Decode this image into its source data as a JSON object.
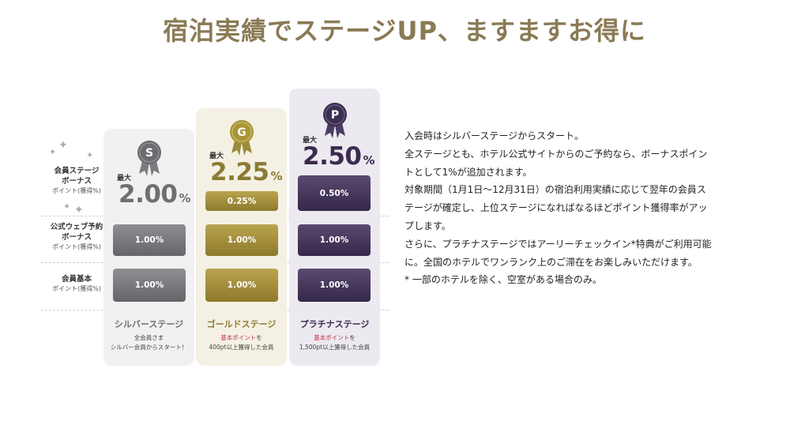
{
  "title": "宿泊実績でステージUP、ますますお得に",
  "row_labels": {
    "stage_bonus": {
      "title_line1": "会員ステージ",
      "title_line2": "ボーナス",
      "sub": "ポイント(獲得%)"
    },
    "web_bonus": {
      "title_line1": "公式ウェブ予約",
      "title_line2": "ボーナス",
      "sub": "ポイント(獲得%)"
    },
    "basic": {
      "title_line1": "会員基本",
      "sub": "ポイント(獲得%)"
    }
  },
  "sparkle_glyph": "✦",
  "max_label": "最大",
  "percent_sign": "%",
  "stages": {
    "silver": {
      "letter": "S",
      "max_rate": "2.00",
      "bonus": "",
      "web_bonus": "1.00%",
      "basic": "1.00%",
      "name": "シルバーステージ",
      "desc_line1": "全会員さま",
      "desc_line2": "シルバー会員からスタート！",
      "color": "#6f6f6f"
    },
    "gold": {
      "letter": "G",
      "max_rate": "2.25",
      "bonus": "0.25%",
      "web_bonus": "1.00%",
      "basic": "1.00%",
      "name": "ゴールドステージ",
      "desc_highlight": "基本ポイント",
      "desc_line1_rest": "を",
      "desc_line2": "400pt以上獲得した会員",
      "color": "#8c7b33"
    },
    "platinum": {
      "letter": "P",
      "max_rate": "2.50",
      "bonus": "0.50%",
      "web_bonus": "1.00%",
      "basic": "1.00%",
      "name": "プラチナステージ",
      "desc_highlight": "基本ポイント",
      "desc_line1_rest": "を",
      "desc_line2": "1,500pt以上獲得した会員",
      "color": "#3b2b4e"
    }
  },
  "description_lines": [
    "入会時はシルバーステージからスタート。",
    "全ステージとも、ホテル公式サイトからのご予約なら、ボーナスポイン",
    "トとして1%が追加されます。",
    "対象期間（1月1日〜12月31日）の宿泊利用実績に応じて翌年の会員ス",
    "テージが確定し、上位ステージになればなるほどポイント獲得率がアッ",
    "プします。",
    "さらに、プラチナステージではアーリーチェックイン*特典がご利用可能",
    "に。全国のホテルでワンランク上のご滞在をお楽しみいただけます。",
    "* 一部のホテルを除く、空室がある場合のみ。"
  ]
}
